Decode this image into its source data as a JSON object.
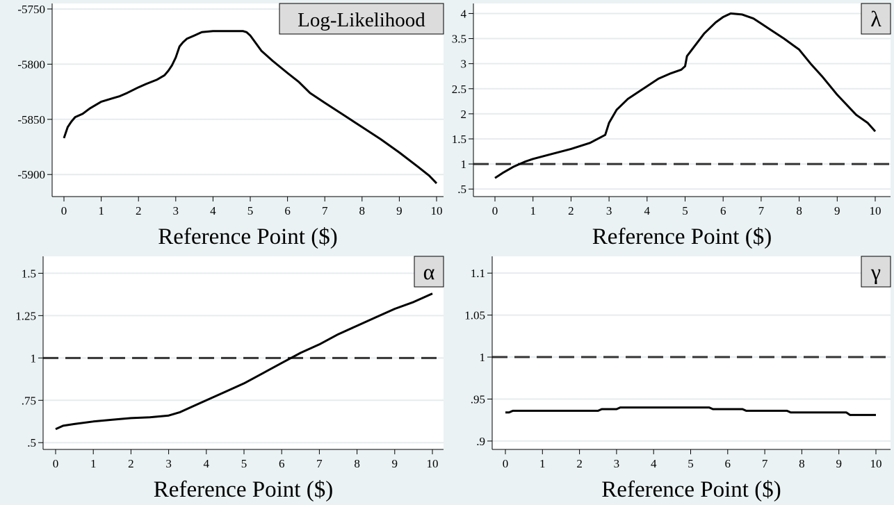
{
  "chart_data": [
    {
      "type": "line",
      "title": "",
      "legend_label": "Log-Likelihood",
      "legend_position": "top-right",
      "xlabel": "Reference Point ($)",
      "ylabel": "",
      "xlim": [
        0,
        10
      ],
      "ylim": [
        -5920,
        -5745
      ],
      "grid": true,
      "reference_line": null,
      "x_ticks": [
        "0",
        "1",
        "2",
        "3",
        "4",
        "5",
        "6",
        "7",
        "8",
        "9",
        "10"
      ],
      "y_ticks": [
        {
          "value": -5750,
          "label": "-5750"
        },
        {
          "value": -5800,
          "label": "-5800"
        },
        {
          "value": -5850,
          "label": "-5850"
        },
        {
          "value": -5900,
          "label": "-5900"
        }
      ],
      "series": [
        {
          "x": [
            0,
            0.1,
            0.2,
            0.3,
            0.5,
            0.7,
            1,
            1.3,
            1.5,
            1.7,
            2,
            2.2,
            2.5,
            2.7,
            2.8,
            2.9,
            3,
            3.05,
            3.1,
            3.2,
            3.3,
            3.5,
            3.7,
            4,
            4.3,
            4.6,
            4.8,
            4.9,
            5,
            5.3,
            5.6,
            6,
            6.3,
            6.6,
            7,
            7.5,
            8,
            8.5,
            9,
            9.5,
            9.8,
            10
          ],
          "y": [
            -5867,
            -5857,
            -5852,
            -5848,
            -5845,
            -5840,
            -5834,
            -5831,
            -5829,
            -5826,
            -5821,
            -5818,
            -5814,
            -5810,
            -5806,
            -5801,
            -5794,
            -5789,
            -5784,
            -5780,
            -5777,
            -5774,
            -5771,
            -5770,
            -5770,
            -5770,
            -5770,
            -5771,
            -5774,
            -5788,
            -5797,
            -5808,
            -5816,
            -5826,
            -5835,
            -5846,
            -5857,
            -5868,
            -5880,
            -5893,
            -5901,
            -5908
          ]
        }
      ]
    },
    {
      "type": "line",
      "title": "",
      "legend_label": "λ",
      "legend_position": "top-right",
      "xlabel": "Reference Point ($)",
      "ylabel": "",
      "xlim": [
        0,
        10
      ],
      "ylim": [
        0.35,
        4.2
      ],
      "grid": true,
      "reference_line": 1,
      "x_ticks": [
        "0",
        "1",
        "2",
        "3",
        "4",
        "5",
        "6",
        "7",
        "8",
        "9",
        "10"
      ],
      "y_ticks": [
        {
          "value": 0.5,
          "label": ".5"
        },
        {
          "value": 1,
          "label": "1"
        },
        {
          "value": 1.5,
          "label": "1.5"
        },
        {
          "value": 2,
          "label": "2"
        },
        {
          "value": 2.5,
          "label": "2.5"
        },
        {
          "value": 3,
          "label": "3"
        },
        {
          "value": 3.5,
          "label": "3.5"
        },
        {
          "value": 4,
          "label": "4"
        }
      ],
      "series": [
        {
          "x": [
            0,
            0.2,
            0.5,
            0.8,
            1,
            1.5,
            2,
            2.5,
            2.9,
            3,
            3.2,
            3.5,
            4,
            4.3,
            4.6,
            4.9,
            5,
            5.05,
            5.3,
            5.5,
            5.8,
            6,
            6.2,
            6.5,
            6.8,
            7,
            7.3,
            7.6,
            8,
            8.3,
            8.6,
            9,
            9.5,
            9.8,
            10
          ],
          "y": [
            0.72,
            0.82,
            0.95,
            1.05,
            1.1,
            1.2,
            1.3,
            1.42,
            1.58,
            1.82,
            2.08,
            2.3,
            2.55,
            2.7,
            2.8,
            2.88,
            2.95,
            3.15,
            3.4,
            3.6,
            3.82,
            3.93,
            4.0,
            3.98,
            3.9,
            3.8,
            3.65,
            3.5,
            3.28,
            3.0,
            2.75,
            2.38,
            1.98,
            1.82,
            1.65
          ]
        }
      ]
    },
    {
      "type": "line",
      "title": "",
      "legend_label": "α",
      "legend_position": "top-right",
      "xlabel": "Reference Point ($)",
      "ylabel": "",
      "xlim": [
        0,
        10
      ],
      "ylim": [
        0.46,
        1.6
      ],
      "grid": true,
      "reference_line": 1,
      "x_ticks": [
        "0",
        "1",
        "2",
        "3",
        "4",
        "5",
        "6",
        "7",
        "8",
        "9",
        "10"
      ],
      "y_ticks": [
        {
          "value": 0.5,
          "label": ".5"
        },
        {
          "value": 0.75,
          "label": ".75"
        },
        {
          "value": 1,
          "label": "1"
        },
        {
          "value": 1.25,
          "label": "1.25"
        },
        {
          "value": 1.5,
          "label": "1.5"
        }
      ],
      "series": [
        {
          "x": [
            0,
            0.2,
            0.5,
            1,
            1.5,
            2,
            2.5,
            3,
            3.3,
            3.6,
            4,
            4.5,
            5,
            5.5,
            6,
            6.5,
            7,
            7.5,
            8,
            8.5,
            9,
            9.5,
            10
          ],
          "y": [
            0.58,
            0.6,
            0.61,
            0.625,
            0.635,
            0.645,
            0.65,
            0.66,
            0.68,
            0.71,
            0.75,
            0.8,
            0.85,
            0.91,
            0.97,
            1.03,
            1.08,
            1.14,
            1.19,
            1.24,
            1.29,
            1.33,
            1.38
          ]
        }
      ]
    },
    {
      "type": "line",
      "title": "",
      "legend_label": "γ",
      "legend_position": "top-right",
      "xlabel": "Reference Point ($)",
      "ylabel": "",
      "xlim": [
        0,
        10
      ],
      "ylim": [
        0.89,
        1.12
      ],
      "grid": true,
      "reference_line": 1,
      "x_ticks": [
        "0",
        "1",
        "2",
        "3",
        "4",
        "5",
        "6",
        "7",
        "8",
        "9",
        "10"
      ],
      "y_ticks": [
        {
          "value": 0.9,
          "label": ".9"
        },
        {
          "value": 0.95,
          "label": ".95"
        },
        {
          "value": 1,
          "label": "1"
        },
        {
          "value": 1.05,
          "label": "1.05"
        },
        {
          "value": 1.1,
          "label": "1.1"
        }
      ],
      "series": [
        {
          "x": [
            0,
            0.1,
            0.2,
            2.5,
            2.6,
            3.0,
            3.1,
            5.5,
            5.6,
            6.4,
            6.5,
            7.6,
            7.7,
            9.2,
            9.3,
            10
          ],
          "y": [
            0.934,
            0.934,
            0.936,
            0.936,
            0.938,
            0.938,
            0.94,
            0.94,
            0.938,
            0.938,
            0.936,
            0.936,
            0.934,
            0.934,
            0.931,
            0.931
          ]
        }
      ]
    }
  ]
}
